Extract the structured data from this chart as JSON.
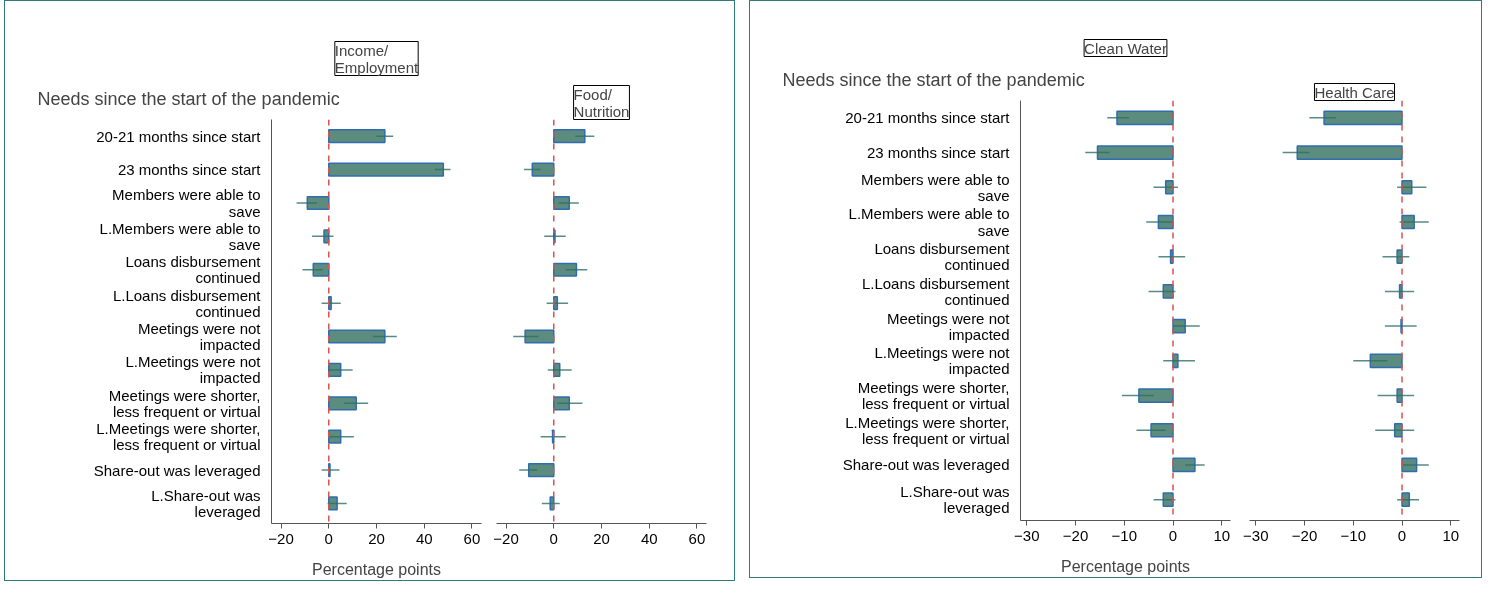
{
  "chart_data": [
    {
      "type": "bar",
      "orientation": "horizontal",
      "title": "Income/\nEmployment",
      "annotations": [
        "Needs since the start of the pandemic"
      ],
      "xlabel": "Percentage points",
      "categories": [
        "20-21 months since start",
        "23 months since start",
        "Members were able to save",
        "L.Members were able to save",
        "Loans disbursement continued",
        "L.Loans disbursement continued",
        "Meetings were not impacted",
        "L.Meetings were not impacted",
        "Meetings were shorter, less frequent or virtual",
        "L.Meetings were shorter, less frequent or virtual",
        "Share-out was leveraged",
        "L.Share-out was leveraged"
      ],
      "values": [
        23.5,
        48,
        -9,
        -2,
        -6.5,
        1,
        23.5,
        5,
        11.5,
        5,
        0.5,
        3.5
      ],
      "errors": [
        [
          20,
          27
        ],
        [
          44.5,
          51
        ],
        [
          -13.5,
          -5
        ],
        [
          -7,
          2
        ],
        [
          -11,
          -2.5
        ],
        [
          -3,
          5
        ],
        [
          18.5,
          28.5
        ],
        [
          0,
          10
        ],
        [
          6.5,
          16.5
        ],
        [
          0,
          10.5
        ],
        [
          -3,
          4.5
        ],
        [
          -0.5,
          7.5
        ]
      ],
      "color": "#5b8c7e",
      "xlim": [
        -24,
        64
      ],
      "xticks": [
        -20,
        0,
        20,
        40,
        60
      ],
      "grid": false,
      "ref_lines": [
        {
          "axis": "x",
          "value": 0,
          "color": "#d9534f",
          "line_style": "dashed"
        }
      ]
    },
    {
      "type": "bar",
      "orientation": "horizontal",
      "title": "Food/\nNutrition",
      "tick_labels": "x",
      "categories": [
        "20-21 months since start",
        "23 months since start",
        "Members were able to save",
        "L.Members were able to save",
        "Loans disbursement continued",
        "L.Loans disbursement continued",
        "Meetings were not impacted",
        "L.Meetings were not impacted",
        "Meetings were shorter, less frequent or virtual",
        "L.Meetings were shorter, less frequent or virtual",
        "Share-out was leveraged",
        "L.Share-out was leveraged"
      ],
      "values": [
        13,
        -9,
        6.5,
        0.5,
        9.5,
        1.5,
        -12,
        2.5,
        6.5,
        -0.5,
        -10.5,
        -1.5
      ],
      "errors": [
        [
          9,
          17
        ],
        [
          -12.5,
          -5.5
        ],
        [
          2,
          10.5
        ],
        [
          -4,
          5
        ],
        [
          5,
          14
        ],
        [
          -3,
          6
        ],
        [
          -17,
          -6.5
        ],
        [
          -2.5,
          7.5
        ],
        [
          1.5,
          12
        ],
        [
          -5.5,
          5
        ],
        [
          -14.5,
          -7
        ],
        [
          -5,
          2.5
        ]
      ],
      "color": "#5b8c7e",
      "xlim": [
        -24,
        64
      ],
      "xticks": [
        -20,
        0,
        20,
        40,
        60
      ],
      "grid": false,
      "ref_lines": [
        {
          "axis": "x",
          "value": 0,
          "color": "#d9534f",
          "line_style": "dashed"
        }
      ]
    },
    {
      "type": "bar",
      "orientation": "horizontal",
      "title": "Clean Water",
      "annotations": [
        "Needs since the start of the pandemic"
      ],
      "xlabel": "Percentage points",
      "categories": [
        "20-21 months since start",
        "23 months since start",
        "Members were able to save",
        "L.Members were able to save",
        "Loans disbursement continued",
        "L.Loans disbursement continued",
        "Meetings were not impacted",
        "L.Meetings were not impacted",
        "Meetings were shorter, less frequent or virtual",
        "L.Meetings were shorter, less frequent or virtual",
        "Share-out was leveraged",
        "L.Share-out was leveraged"
      ],
      "values": [
        -11.5,
        -15.5,
        -1.5,
        -3,
        -0.5,
        -2,
        2.5,
        1,
        -7,
        -4.5,
        4.5,
        -2
      ],
      "errors": [
        [
          -13.5,
          -9
        ],
        [
          -18,
          -13
        ],
        [
          -4,
          1
        ],
        [
          -5.5,
          0
        ],
        [
          -3,
          2.5
        ],
        [
          -5,
          0.5
        ],
        [
          0,
          5.5
        ],
        [
          -2,
          4.5
        ],
        [
          -10.5,
          -4
        ],
        [
          -7.5,
          -1.5
        ],
        [
          2.5,
          6.5
        ],
        [
          -4,
          0.5
        ]
      ],
      "color": "#5b8c7e",
      "xlim": [
        -31.3,
        11.8
      ],
      "xticks": [
        -30,
        -20,
        -10,
        0,
        10
      ],
      "grid": false,
      "ref_lines": [
        {
          "axis": "x",
          "value": 0,
          "color": "#d9534f",
          "line_style": "dashed"
        }
      ]
    },
    {
      "type": "bar",
      "orientation": "horizontal",
      "title": "Health Care",
      "tick_labels": "x",
      "categories": [
        "20-21 months since start",
        "23 months since start",
        "Members were able to save",
        "L.Members were able to save",
        "Loans disbursement continued",
        "L.Loans disbursement continued",
        "Meetings were not impacted",
        "L.Meetings were not impacted",
        "Meetings were shorter, less frequent or virtual",
        "L.Meetings were shorter, less frequent or virtual",
        "Share-out was leveraged",
        "L.Share-out was leveraged"
      ],
      "values": [
        -16,
        -21.5,
        2,
        2.5,
        -1,
        -0.5,
        -0.2,
        -6.5,
        -1,
        -1.5,
        3,
        1.5
      ],
      "errors": [
        [
          -19,
          -13.5
        ],
        [
          -24.5,
          -19
        ],
        [
          -1,
          5
        ],
        [
          -0.5,
          5.5
        ],
        [
          -4,
          1.5
        ],
        [
          -3.5,
          2.5
        ],
        [
          -3.5,
          3
        ],
        [
          -10,
          -3
        ],
        [
          -5,
          2.5
        ],
        [
          -5.5,
          2.5
        ],
        [
          0,
          5.5
        ],
        [
          -1,
          3.5
        ]
      ],
      "color": "#5b8c7e",
      "xlim": [
        -31.3,
        11.8
      ],
      "xticks": [
        -30,
        -20,
        -10,
        0,
        10
      ],
      "grid": false,
      "ref_lines": [
        {
          "axis": "x",
          "value": 0,
          "color": "#d9534f",
          "line_style": "dashed"
        }
      ]
    }
  ]
}
